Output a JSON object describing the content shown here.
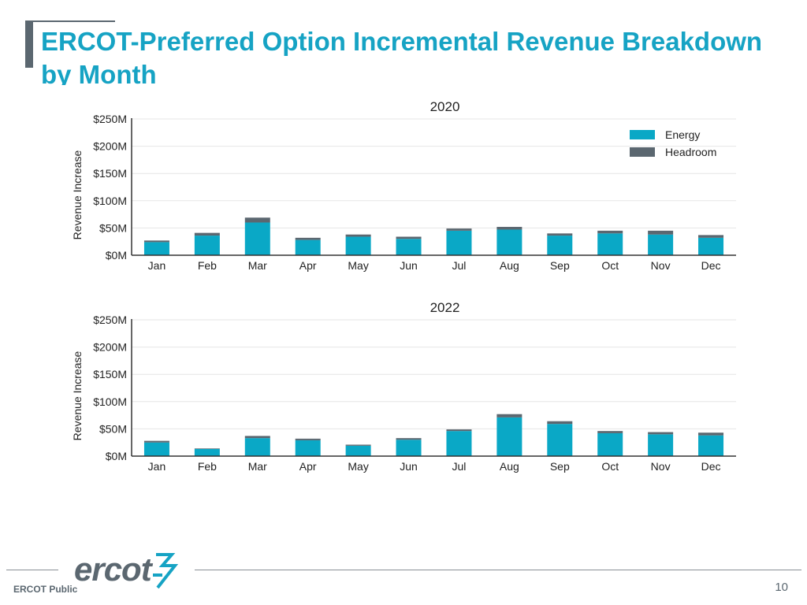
{
  "title": "ERCOT-Preferred Option Incremental Revenue Breakdown by Month",
  "colors": {
    "title": "#16a3c4",
    "energy": "#0aa8c6",
    "headroom": "#5b6770",
    "grid": "#e6e6e6",
    "axis": "#333333",
    "logo": "#5b6770"
  },
  "logo": {
    "text": "ercot",
    "icon": "lightning-bolt-icon"
  },
  "footer": {
    "label": "ERCOT Public",
    "page_number": "10"
  },
  "chart_data": [
    {
      "type": "bar",
      "stacked": true,
      "title": "2020",
      "xlabel": "",
      "ylabel": "Revenue Increase",
      "ylim": [
        0,
        250
      ],
      "yticks": [
        0,
        50,
        100,
        150,
        200,
        250
      ],
      "ytick_labels": [
        "$0M",
        "$50M",
        "$100M",
        "$150M",
        "$200M",
        "$250M"
      ],
      "categories": [
        "Jan",
        "Feb",
        "Mar",
        "Apr",
        "May",
        "Jun",
        "Jul",
        "Aug",
        "Sep",
        "Oct",
        "Nov",
        "Dec"
      ],
      "series": [
        {
          "name": "Energy",
          "values": [
            24,
            36,
            60,
            28,
            34,
            30,
            45,
            47,
            36,
            40,
            38,
            32
          ]
        },
        {
          "name": "Headroom",
          "values": [
            3,
            5,
            9,
            4,
            4,
            4,
            4,
            5,
            4,
            5,
            7,
            5
          ]
        }
      ],
      "legend": {
        "position": "top-right",
        "items": [
          "Energy",
          "Headroom"
        ]
      },
      "grid": true
    },
    {
      "type": "bar",
      "stacked": true,
      "title": "2022",
      "xlabel": "",
      "ylabel": "Revenue Increase",
      "ylim": [
        0,
        250
      ],
      "yticks": [
        0,
        50,
        100,
        150,
        200,
        250
      ],
      "ytick_labels": [
        "$0M",
        "$50M",
        "$100M",
        "$150M",
        "$200M",
        "$250M"
      ],
      "categories": [
        "Jan",
        "Feb",
        "Mar",
        "Apr",
        "May",
        "Jun",
        "Jul",
        "Aug",
        "Sep",
        "Oct",
        "Nov",
        "Dec"
      ],
      "series": [
        {
          "name": "Energy",
          "values": [
            25,
            13,
            33,
            29,
            19,
            30,
            46,
            71,
            59,
            42,
            40,
            38
          ]
        },
        {
          "name": "Headroom",
          "values": [
            3,
            1,
            4,
            3,
            2,
            3,
            3,
            6,
            5,
            4,
            4,
            5
          ]
        }
      ],
      "grid": true
    }
  ]
}
